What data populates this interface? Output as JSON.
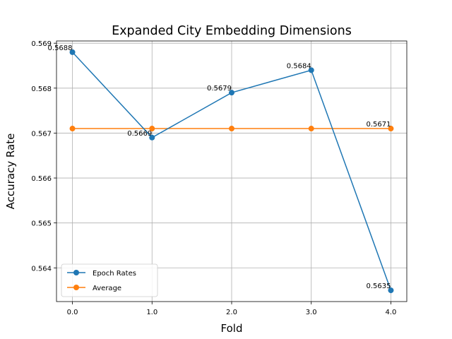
{
  "chart_data": {
    "type": "line",
    "title": "Expanded City Embedding Dimensions",
    "xlabel": "Fold",
    "ylabel": "Accuracy Rate",
    "x": [
      0.0,
      1.0,
      2.0,
      3.0,
      4.0
    ],
    "x_tick_labels": [
      "0.0",
      "1.0",
      "2.0",
      "3.0",
      "4.0"
    ],
    "y_tick_labels": [
      "0.564",
      "0.565",
      "0.566",
      "0.567",
      "0.568",
      "0.569"
    ],
    "y_ticks": [
      0.564,
      0.565,
      0.566,
      0.567,
      0.568,
      0.569
    ],
    "xlim": [
      -0.2,
      4.2
    ],
    "ylim": [
      0.56325,
      0.56905
    ],
    "grid": true,
    "legend_position": "lower-left",
    "series": [
      {
        "name": "Epoch Rates",
        "color": "#1f77b4",
        "marker": "circle",
        "values": [
          0.5688,
          0.5669,
          0.5679,
          0.5684,
          0.5635
        ]
      },
      {
        "name": "Average",
        "color": "#ff7f0e",
        "marker": "circle",
        "values": [
          0.5671,
          0.5671,
          0.5671,
          0.5671,
          0.5671
        ]
      }
    ],
    "annotations": [
      {
        "x": 0.0,
        "y": 0.5688,
        "text": "0.5688"
      },
      {
        "x": 1.0,
        "y": 0.5669,
        "text": "0.5669"
      },
      {
        "x": 2.0,
        "y": 0.5679,
        "text": "0.5679"
      },
      {
        "x": 3.0,
        "y": 0.5684,
        "text": "0.5684"
      },
      {
        "x": 4.0,
        "y": 0.5635,
        "text": "0.5635"
      },
      {
        "x": 4.0,
        "y": 0.5671,
        "text": "0.5671"
      }
    ]
  }
}
